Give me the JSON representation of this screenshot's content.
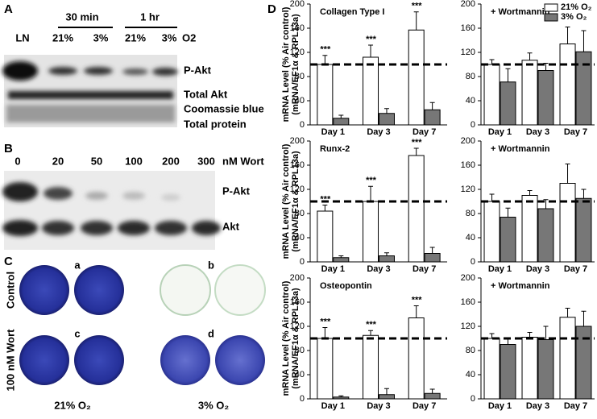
{
  "panel_a": {
    "label": "A",
    "time_1": "30 min",
    "time_2": "1 hr",
    "lanes": [
      "LN",
      "21%",
      "3%",
      "21%",
      "3%"
    ],
    "o2": "O2",
    "rows": [
      "P-Akt",
      "Total Akt",
      "Coomassie blue",
      "Total protein"
    ]
  },
  "panel_b": {
    "label": "B",
    "doses": [
      "0",
      "20",
      "50",
      "100",
      "200",
      "300"
    ],
    "unit": "nM Wort",
    "rows": [
      "P-Akt",
      "Akt"
    ]
  },
  "panel_c": {
    "label": "C",
    "wells": [
      "a",
      "b",
      "c",
      "d"
    ],
    "rows": [
      "Control",
      "100 nM Wort"
    ],
    "columns": [
      "21% O₂",
      "3% O₂"
    ]
  },
  "panel_d": {
    "label": "D"
  },
  "chart_data": [
    {
      "type": "bar",
      "title": "Collagen Type I",
      "y_label": [
        "mRNA Level (% Air control)",
        "(mRNA/EF1α & RPL13a)"
      ],
      "categories": [
        "Day 1",
        "Day 3",
        "Day 7"
      ],
      "series": [
        {
          "color": "#ffffff",
          "values": [
            100,
            112,
            157
          ],
          "errors": [
            15,
            20,
            30
          ]
        },
        {
          "color": "#777777",
          "values": [
            11,
            19,
            25
          ],
          "errors": [
            5,
            8,
            12
          ]
        }
      ],
      "annotations": [
        "***",
        "***",
        "***"
      ],
      "ylim": [
        0,
        200
      ],
      "yticks": [
        0,
        40,
        80,
        120,
        160,
        200
      ],
      "reference_line": 100
    },
    {
      "type": "bar",
      "title": "+ Wortmannin",
      "categories": [
        "Day 1",
        "Day 3",
        "Day 7"
      ],
      "series": [
        {
          "name": "21% O₂",
          "color": "#ffffff",
          "values": [
            100,
            107,
            134
          ],
          "errors": [
            8,
            12,
            28
          ]
        },
        {
          "name": "3% O₂",
          "color": "#777777",
          "values": [
            71,
            90,
            121
          ],
          "errors": [
            22,
            12,
            35
          ]
        }
      ],
      "legend": "upper right",
      "ylim": [
        0,
        200
      ],
      "yticks": [
        0,
        40,
        80,
        120,
        160,
        200
      ],
      "reference_line": 100
    },
    {
      "type": "bar",
      "title": "Runx-2",
      "y_label": [
        "mRNA Level (% Air control)",
        "(mRNA/EF1α & RPL13a)"
      ],
      "categories": [
        "Day 1",
        "Day 3",
        "Day 7"
      ],
      "series": [
        {
          "color": "#ffffff",
          "values": [
            84,
            100,
            176
          ],
          "errors": [
            10,
            25,
            12
          ]
        },
        {
          "color": "#777777",
          "values": [
            7,
            10,
            14
          ],
          "errors": [
            3,
            5,
            10
          ]
        }
      ],
      "annotations": [
        "***",
        "***",
        "***"
      ],
      "ylim": [
        0,
        200
      ],
      "yticks": [
        0,
        40,
        80,
        120,
        160,
        200
      ],
      "reference_line": 100
    },
    {
      "type": "bar",
      "title": "+ Wortmannin",
      "categories": [
        "Day 1",
        "Day 3",
        "Day 7"
      ],
      "series": [
        {
          "color": "#ffffff",
          "values": [
            100,
            110,
            130
          ],
          "errors": [
            12,
            8,
            32
          ]
        },
        {
          "color": "#777777",
          "values": [
            74,
            88,
            105
          ],
          "errors": [
            15,
            15,
            15
          ]
        }
      ],
      "ylim": [
        0,
        200
      ],
      "yticks": [
        0,
        40,
        80,
        120,
        160,
        200
      ],
      "reference_line": 100
    },
    {
      "type": "bar",
      "title": "Osteopontin",
      "y_label": [
        "mRNA Level (% Air control)",
        "(mRNA/EF1α & RPL13a)"
      ],
      "categories": [
        "Day 1",
        "Day 3",
        "Day 7"
      ],
      "series": [
        {
          "color": "#ffffff",
          "values": [
            100,
            105,
            134
          ],
          "errors": [
            18,
            8,
            20
          ]
        },
        {
          "color": "#777777",
          "values": [
            3,
            7,
            9
          ],
          "errors": [
            2,
            10,
            7
          ]
        }
      ],
      "annotations": [
        "***",
        "***",
        "***"
      ],
      "ylim": [
        0,
        200
      ],
      "yticks": [
        0,
        40,
        80,
        120,
        160,
        200
      ],
      "reference_line": 100
    },
    {
      "type": "bar",
      "title": "+ Wortmannin",
      "categories": [
        "Day 1",
        "Day 3",
        "Day 7"
      ],
      "series": [
        {
          "color": "#ffffff",
          "values": [
            100,
            102,
            135
          ],
          "errors": [
            8,
            8,
            15
          ]
        },
        {
          "color": "#777777",
          "values": [
            90,
            98,
            120
          ],
          "errors": [
            10,
            22,
            25
          ]
        }
      ],
      "ylim": [
        0,
        200
      ],
      "yticks": [
        0,
        40,
        80,
        120,
        160,
        200
      ],
      "reference_line": 100
    }
  ]
}
